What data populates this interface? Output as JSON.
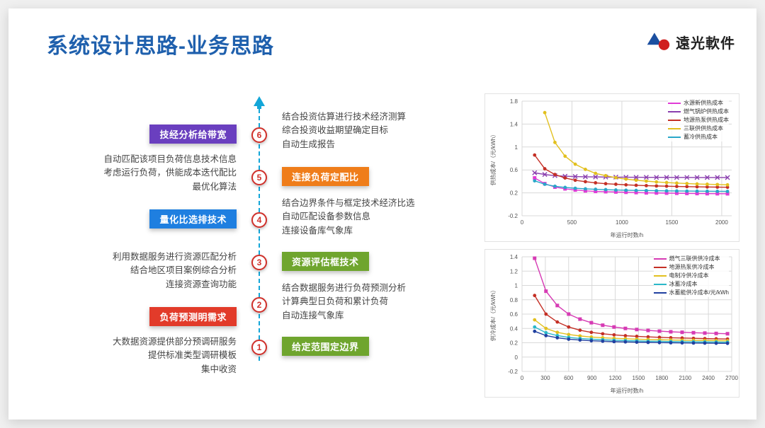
{
  "title": "系统设计思路-业务思路",
  "logo_text": "遠光軟件",
  "steps": {
    "left": {
      "s6": {
        "tag": "技经分析给带宽",
        "color": "#6a3fbf"
      },
      "s5": {
        "desc": "自动匹配该项目负荷信息技术信息\n考虑运行负荷，供能成本迭代配比\n最优化算法"
      },
      "s4": {
        "tag": "量化比选排技术",
        "color": "#1f7fe0"
      },
      "s3": {
        "desc": "利用数据服务进行资源匹配分析\n结合地区项目案例综合分析\n连接资源查询功能"
      },
      "s2": {
        "tag": "负荷预测明需求",
        "color": "#e23b2a"
      },
      "s1": {
        "desc": "大数据资源提供部分预调研服务\n提供标准类型调研模板\n集中收资"
      }
    },
    "right": {
      "r6": {
        "desc": "结合投资估算进行技术经济测算\n综合投资收益期望确定目标\n自动生成报告"
      },
      "r5": {
        "tag": "连接负荷定配比",
        "color": "#ef7d1a"
      },
      "r4": {
        "desc": "结合边界条件与框定技术经济比选\n自动匹配设备参数信息\n连接设备库气象库"
      },
      "r3": {
        "tag": "资源评估框技术",
        "color": "#6fa52e"
      },
      "r2": {
        "desc": "结合数据服务进行负荷预测分析\n计算典型日负荷和累计负荷\n自动连接气象库"
      },
      "r1": {
        "tag": "给定范围定边界",
        "color": "#6fa52e"
      }
    },
    "nodes": [
      "1",
      "2",
      "3",
      "4",
      "5",
      "6"
    ]
  },
  "accent_spine": "#13a6d8",
  "chart_top": {
    "xlabel": "年运行时数/h",
    "ylabel": "供热成本/（元/kWh）",
    "xlim": [
      0,
      2100
    ],
    "ylim": [
      -0.2,
      1.8
    ],
    "xtick_step": 500,
    "ytick_step": 0.4,
    "series": [
      {
        "name": "水源新供热成本",
        "color": "#e03bd6",
        "marker": "sq",
        "y": [
          0.46,
          0.36,
          0.3,
          0.27,
          0.25,
          0.235,
          0.225,
          0.22,
          0.215,
          0.21,
          0.205,
          0.2,
          0.198,
          0.195,
          0.193,
          0.19,
          0.188,
          0.186,
          0.185,
          0.184
        ]
      },
      {
        "name": "燃气锅炉供热成本",
        "color": "#8a3fae",
        "marker": "x",
        "y": [
          0.55,
          0.52,
          0.5,
          0.49,
          0.485,
          0.48,
          0.478,
          0.476,
          0.474,
          0.473,
          0.472,
          0.471,
          0.47,
          0.47,
          0.469,
          0.469,
          0.468,
          0.468,
          0.468,
          0.467
        ]
      },
      {
        "name": "地源热泵供热成本",
        "color": "#c42f25",
        "marker": "dot",
        "y": [
          0.86,
          0.62,
          0.52,
          0.46,
          0.42,
          0.395,
          0.375,
          0.36,
          0.35,
          0.34,
          0.332,
          0.326,
          0.32,
          0.316,
          0.312,
          0.308,
          0.305,
          0.302,
          0.3,
          0.298
        ]
      },
      {
        "name": "三联供供热成本",
        "color": "#e2c01f",
        "marker": "dot",
        "y": [
          null,
          1.6,
          1.08,
          0.84,
          0.7,
          0.61,
          0.54,
          0.5,
          0.465,
          0.44,
          0.42,
          0.405,
          0.39,
          0.38,
          0.37,
          0.362,
          0.355,
          0.35,
          0.345,
          0.34
        ]
      },
      {
        "name": "蓄冷供热成本",
        "color": "#2aa7c9",
        "marker": "dot",
        "y": [
          0.41,
          0.35,
          0.315,
          0.295,
          0.28,
          0.27,
          0.262,
          0.256,
          0.25,
          0.246,
          0.242,
          0.24,
          0.237,
          0.235,
          0.233,
          0.231,
          0.23,
          0.228,
          0.227,
          0.226
        ]
      }
    ]
  },
  "chart_bottom": {
    "xlabel": "年运行时数/h",
    "ylabel": "供冷成本/（元/kWh）",
    "xlim": [
      0,
      2700
    ],
    "ylim": [
      -0.2,
      1.4
    ],
    "xtick_step": 300,
    "ytick_step": 0.2,
    "series": [
      {
        "name": "燃气三联供供冷成本",
        "color": "#d63bb4",
        "marker": "sq",
        "y": [
          1.38,
          0.92,
          0.72,
          0.6,
          0.53,
          0.48,
          0.445,
          0.42,
          0.4,
          0.385,
          0.372,
          0.362,
          0.353,
          0.346,
          0.34,
          0.335,
          0.33,
          0.326
        ]
      },
      {
        "name": "地源热泵供冷成本",
        "color": "#c42f25",
        "marker": "dot",
        "y": [
          0.86,
          0.6,
          0.49,
          0.42,
          0.375,
          0.345,
          0.325,
          0.31,
          0.298,
          0.29,
          0.282,
          0.276,
          0.27,
          0.266,
          0.262,
          0.258,
          0.255,
          0.252
        ]
      },
      {
        "name": "电制冷供冷成本",
        "color": "#e2c01f",
        "marker": "dot",
        "y": [
          0.52,
          0.4,
          0.345,
          0.315,
          0.295,
          0.28,
          0.27,
          0.262,
          0.256,
          0.25,
          0.246,
          0.242,
          0.239,
          0.236,
          0.234,
          0.232,
          0.23,
          0.228
        ]
      },
      {
        "name": "冰蓄冷成本",
        "color": "#2ab8c9",
        "marker": "dot",
        "y": [
          0.42,
          0.34,
          0.3,
          0.275,
          0.26,
          0.25,
          0.242,
          0.236,
          0.23,
          0.226,
          0.222,
          0.22,
          0.217,
          0.215,
          0.213,
          0.211,
          0.21,
          0.208
        ]
      },
      {
        "name": "水蓄能供冷成本/元/kWh",
        "color": "#2040a0",
        "marker": "dot",
        "y": [
          0.36,
          0.3,
          0.27,
          0.25,
          0.238,
          0.228,
          0.222,
          0.216,
          0.212,
          0.208,
          0.205,
          0.202,
          0.2,
          0.198,
          0.196,
          0.195,
          0.193,
          0.192
        ]
      }
    ]
  }
}
